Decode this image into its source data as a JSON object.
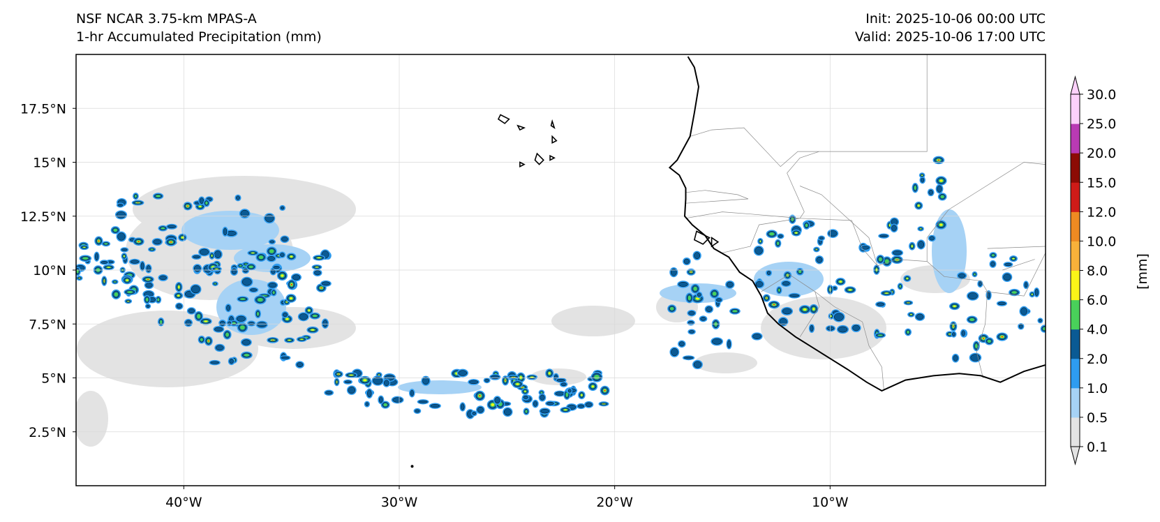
{
  "header": {
    "model": "NSF NCAR 3.75-km MPAS-A",
    "field": "1-hr Accumulated Precipitation (mm)",
    "init": "Init: 2025-10-06 00:00 UTC",
    "valid": "Valid: 2025-10-06 17:00 UTC"
  },
  "map": {
    "extent": {
      "lon_min": -45,
      "lon_max": 0,
      "lat_min": 0,
      "lat_max": 20
    },
    "lon_ticks": [
      {
        "value": -40,
        "label": "40°W"
      },
      {
        "value": -30,
        "label": "30°W"
      },
      {
        "value": -20,
        "label": "20°W"
      },
      {
        "value": -10,
        "label": "10°W"
      }
    ],
    "lat_ticks": [
      {
        "value": 17.5,
        "label": "17.5°N"
      },
      {
        "value": 15,
        "label": "15°N"
      },
      {
        "value": 12.5,
        "label": "12.5°N"
      },
      {
        "value": 10,
        "label": "10°N"
      },
      {
        "value": 7.5,
        "label": "7.5°N"
      },
      {
        "value": 5,
        "label": "5°N"
      },
      {
        "value": 2.5,
        "label": "2.5°N"
      }
    ],
    "coastline": [
      [
        -16.6,
        19.9
      ],
      [
        -16.3,
        19.4
      ],
      [
        -16.1,
        18.5
      ],
      [
        -16.3,
        17.3
      ],
      [
        -16.5,
        16.2
      ],
      [
        -17.1,
        15.1
      ],
      [
        -17.45,
        14.75
      ],
      [
        -17.0,
        14.4
      ],
      [
        -16.7,
        13.8
      ],
      [
        -16.7,
        13.3
      ],
      [
        -16.75,
        12.5
      ],
      [
        -16.4,
        12.1
      ],
      [
        -15.8,
        11.6
      ],
      [
        -15.4,
        11.0
      ],
      [
        -14.7,
        10.6
      ],
      [
        -14.2,
        9.9
      ],
      [
        -13.6,
        9.5
      ],
      [
        -13.2,
        8.8
      ],
      [
        -12.9,
        8.0
      ],
      [
        -12.4,
        7.5
      ],
      [
        -11.6,
        6.9
      ],
      [
        -10.8,
        6.4
      ],
      [
        -10.0,
        5.9
      ],
      [
        -9.2,
        5.4
      ],
      [
        -8.3,
        4.8
      ],
      [
        -7.6,
        4.4
      ],
      [
        -6.5,
        4.9
      ],
      [
        -5.2,
        5.1
      ],
      [
        -4.0,
        5.2
      ],
      [
        -3.0,
        5.1
      ],
      [
        -2.1,
        4.8
      ],
      [
        -1.0,
        5.3
      ],
      [
        0.0,
        5.6
      ]
    ],
    "islands": [
      [
        [
          -25.3,
          17.2
        ],
        [
          -24.9,
          17.0
        ],
        [
          -25.1,
          16.8
        ],
        [
          -25.4,
          17.0
        ],
        [
          -25.3,
          17.2
        ]
      ],
      [
        [
          -24.5,
          16.7
        ],
        [
          -24.2,
          16.6
        ],
        [
          -24.4,
          16.5
        ],
        [
          -24.5,
          16.7
        ]
      ],
      [
        [
          -22.9,
          16.9
        ],
        [
          -22.8,
          16.6
        ],
        [
          -22.95,
          16.7
        ],
        [
          -22.9,
          16.9
        ]
      ],
      [
        [
          -22.9,
          16.2
        ],
        [
          -22.7,
          16.0
        ],
        [
          -22.9,
          15.9
        ],
        [
          -22.9,
          16.2
        ]
      ],
      [
        [
          -23.6,
          15.4
        ],
        [
          -23.3,
          15.1
        ],
        [
          -23.5,
          14.9
        ],
        [
          -23.7,
          15.1
        ],
        [
          -23.6,
          15.4
        ]
      ],
      [
        [
          -24.4,
          15.0
        ],
        [
          -24.2,
          14.9
        ],
        [
          -24.4,
          14.8
        ],
        [
          -24.4,
          15.0
        ]
      ],
      [
        [
          -23.0,
          15.3
        ],
        [
          -22.8,
          15.2
        ],
        [
          -23.0,
          15.1
        ],
        [
          -23.0,
          15.3
        ]
      ],
      [
        [
          -16.2,
          11.8
        ],
        [
          -15.6,
          11.5
        ],
        [
          -15.9,
          11.2
        ],
        [
          -16.3,
          11.4
        ],
        [
          -16.2,
          11.8
        ]
      ],
      [
        [
          -15.5,
          11.5
        ],
        [
          -15.2,
          11.3
        ],
        [
          -15.5,
          11.1
        ],
        [
          -15.5,
          11.5
        ]
      ]
    ],
    "borders": [
      [
        [
          -16.5,
          16.2
        ],
        [
          -15.5,
          16.5
        ],
        [
          -14.0,
          16.6
        ],
        [
          -12.3,
          14.8
        ],
        [
          -11.5,
          15.5
        ],
        [
          -8.0,
          15.5
        ],
        [
          -5.5,
          15.5
        ],
        [
          -5.5,
          20.0
        ]
      ],
      [
        [
          -16.7,
          13.6
        ],
        [
          -15.8,
          13.7
        ],
        [
          -14.3,
          13.5
        ],
        [
          -13.8,
          13.3
        ],
        [
          -16.7,
          13.1
        ]
      ],
      [
        [
          -16.7,
          12.4
        ],
        [
          -15.0,
          12.7
        ],
        [
          -13.7,
          12.6
        ],
        [
          -11.4,
          12.4
        ]
      ],
      [
        [
          -15.0,
          10.8
        ],
        [
          -13.7,
          11.1
        ],
        [
          -13.3,
          12.1
        ],
        [
          -11.4,
          12.4
        ],
        [
          -11.2,
          12.7
        ],
        [
          -12.0,
          14.5
        ]
      ],
      [
        [
          -13.2,
          9.0
        ],
        [
          -11.9,
          9.8
        ],
        [
          -10.7,
          9.0
        ],
        [
          -10.5,
          8.3
        ],
        [
          -11.4,
          6.9
        ]
      ],
      [
        [
          -10.7,
          9.0
        ],
        [
          -9.8,
          8.3
        ],
        [
          -8.5,
          7.6
        ],
        [
          -8.2,
          6.5
        ],
        [
          -7.6,
          5.5
        ],
        [
          -7.5,
          4.4
        ]
      ],
      [
        [
          -11.4,
          12.4
        ],
        [
          -9.0,
          12.3
        ],
        [
          -8.5,
          11.0
        ],
        [
          -7.8,
          10.2
        ],
        [
          -6.9,
          10.5
        ],
        [
          -5.5,
          10.4
        ],
        [
          -4.7,
          9.7
        ],
        [
          -3.0,
          9.5
        ],
        [
          -2.7,
          9.0
        ],
        [
          -2.8,
          7.5
        ],
        [
          -3.2,
          6.2
        ],
        [
          -2.9,
          5.0
        ]
      ],
      [
        [
          -7.8,
          10.2
        ],
        [
          -8.2,
          11.5
        ],
        [
          -10.4,
          13.5
        ],
        [
          -11.4,
          13.9
        ]
      ],
      [
        [
          -5.5,
          10.4
        ],
        [
          -5.5,
          11.5
        ],
        [
          -4.5,
          12.8
        ],
        [
          -1.0,
          15.0
        ],
        [
          0.0,
          14.9
        ]
      ],
      [
        [
          -2.7,
          11.0
        ],
        [
          0.0,
          11.1
        ]
      ],
      [
        [
          -2.8,
          9.0
        ],
        [
          -1.0,
          8.8
        ],
        [
          0.0,
          10.8
        ]
      ],
      [
        [
          -2.0,
          10.0
        ],
        [
          -0.5,
          10.5
        ]
      ],
      [
        [
          -12.0,
          14.5
        ],
        [
          -11.4,
          15.2
        ],
        [
          -10.5,
          15.5
        ]
      ]
    ],
    "markers": [
      {
        "lon": -29.4,
        "lat": 0.9
      }
    ]
  },
  "colorbar": {
    "unit_label": "[mm]",
    "levels": [
      "0.1",
      "0.5",
      "1.0",
      "2.0",
      "4.0",
      "6.0",
      "8.0",
      "10.0",
      "12.0",
      "15.0",
      "20.0",
      "25.0",
      "30.0"
    ],
    "colors": [
      "#e3e3e3",
      "#a6d2f5",
      "#2e9cf0",
      "#0a5a94",
      "#49d15a",
      "#fbf518",
      "#f8b13a",
      "#ee8a22",
      "#cf1b18",
      "#8c0b05",
      "#b93ab4",
      "#fcd1fb"
    ]
  }
}
